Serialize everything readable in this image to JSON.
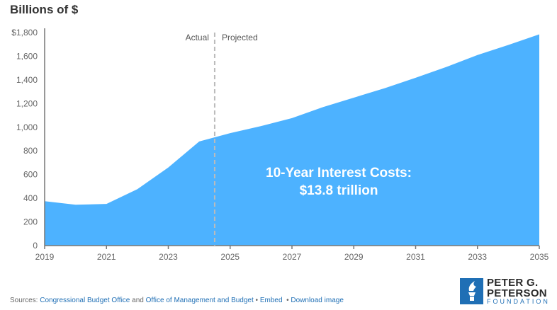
{
  "chart_data": {
    "type": "area",
    "ylabel": "Billions of $",
    "x": [
      2019,
      2020,
      2021,
      2022,
      2023,
      2024,
      2025,
      2026,
      2027,
      2028,
      2029,
      2030,
      2031,
      2032,
      2033,
      2034,
      2035
    ],
    "values": [
      375,
      345,
      352,
      477,
      660,
      880,
      950,
      1010,
      1077,
      1170,
      1250,
      1330,
      1418,
      1510,
      1610,
      1695,
      1785
    ],
    "xlim": [
      2019,
      2035
    ],
    "ylim": [
      0,
      1800
    ],
    "xticks": [
      "2019",
      "2021",
      "2023",
      "2025",
      "2027",
      "2029",
      "2031",
      "2033",
      "2035"
    ],
    "yticks": [
      "0",
      "200",
      "400",
      "600",
      "800",
      "1,000",
      "1,200",
      "1,400",
      "1,600",
      "$1,800"
    ],
    "divider_x": 2024.5,
    "divider_labels": {
      "left": "Actual",
      "right": "Projected"
    },
    "annotation": [
      "10-Year Interest Costs:",
      "$13.8 trillion"
    ],
    "fill_color": "#4db2ff",
    "grid": false
  },
  "footer": {
    "sources_label": "Sources:",
    "link1": "Congressional Budget Office",
    "and": "and",
    "link2": "Office of Management and Budget",
    "sep": "•",
    "embed": "Embed",
    "download": "Download image"
  },
  "logo": {
    "line1": "PETER G.",
    "line2": "PETERSON",
    "line3": "FOUNDATION"
  }
}
